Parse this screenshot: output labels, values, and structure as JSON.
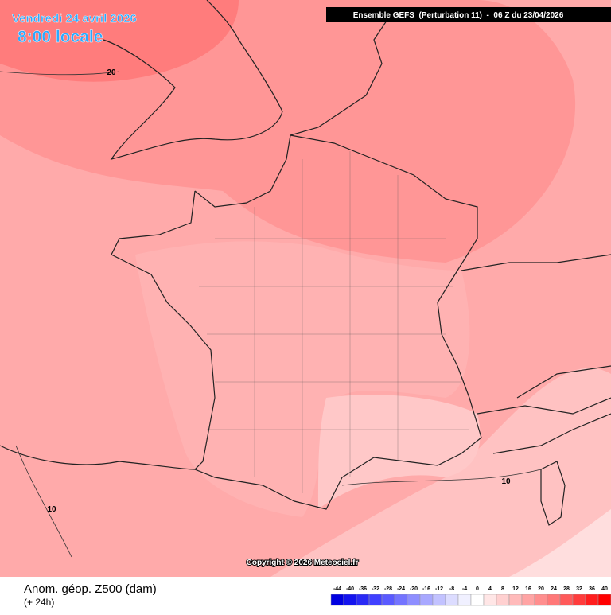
{
  "header": {
    "date": "Vendredi 24 avril 2026",
    "time": "8:00 locale",
    "run": "Ensemble GEFS  (Perturbation 11)  -  06 Z du 23/04/2026"
  },
  "map": {
    "copyright": "Copyright © 2026 Meteociel.fr",
    "contour_labels": [
      20,
      10,
      10
    ]
  },
  "footer": {
    "title": "Anom. géop. Z500 (dam)",
    "lead": "(+ 24h)"
  },
  "legend": {
    "ticks": [
      -44,
      -40,
      -36,
      -32,
      -28,
      -24,
      -20,
      -16,
      -12,
      -8,
      -4,
      0,
      4,
      8,
      12,
      16,
      20,
      24,
      28,
      32,
      36,
      40
    ],
    "colors": [
      "#0000e0",
      "#1414ee",
      "#2a2af5",
      "#4040ff",
      "#5a5aff",
      "#7474ff",
      "#8e8eff",
      "#a8a8ff",
      "#c2c2ff",
      "#dcdcff",
      "#f0f0ff",
      "#ffffff",
      "#ffe6e6",
      "#ffd0d0",
      "#ffbaba",
      "#ffa4a4",
      "#ff8e8e",
      "#ff7878",
      "#ff5a5a",
      "#ff3c3c",
      "#ff1e1e",
      "#ff0000"
    ]
  }
}
